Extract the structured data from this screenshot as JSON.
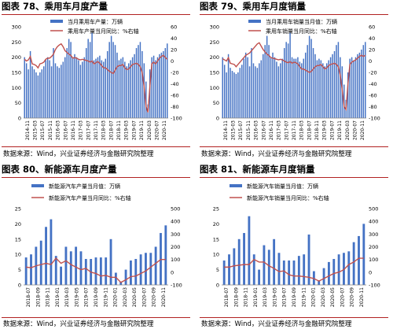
{
  "panels": [
    {
      "title": "图表 78、乘用车月度产量",
      "source": "数据来源：Wind，兴业证券经济与金融研究院整理",
      "chart_data": {
        "type": "bar",
        "legend": [
          "当月乘用车产量：万辆",
          "乘用车产量当月同比：%右轴"
        ],
        "x_tick_labels": [
          "2014-11",
          "2015-03",
          "2015-07",
          "2015-11",
          "2016-03",
          "2016-07",
          "2016-11",
          "2017-03",
          "2017-07",
          "2017-11",
          "2018-03",
          "2018-07",
          "2018-11",
          "2019-03",
          "2019-07",
          "2019-11",
          "2020-03",
          "2020-07",
          "2020-11"
        ],
        "ylim": [
          0,
          300
        ],
        "y_ticks": [
          0,
          50,
          100,
          150,
          200,
          250,
          300
        ],
        "y2lim": [
          -100,
          60
        ],
        "y2_ticks": [
          -100,
          -80,
          -60,
          -40,
          -20,
          0,
          20,
          40,
          60
        ],
        "series": [
          {
            "axis": "left",
            "type": "bar",
            "values": [
              200,
              180,
              160,
              220,
              170,
              160,
              150,
              140,
              150,
              160,
              170,
              190,
              200,
              190,
              170,
              230,
              180,
              170,
              165,
              175,
              185,
              200,
              230,
              260,
              250,
              200,
              210,
              200,
              190,
              175,
              185,
              200,
              230,
              260,
              250,
              280,
              190,
              195,
              200,
              205,
              190,
              185,
              195,
              220,
              250,
              270,
              250,
              240,
              215,
              190,
              195,
              200,
              185,
              170,
              180,
              190,
              200,
              210,
              230,
              240,
              250,
              220,
              180,
              120,
              45,
              160,
              200,
              205,
              190,
              200,
              210,
              215,
              220,
              230,
              245
            ]
          },
          {
            "axis": "right",
            "type": "line",
            "values": [
              3,
              0,
              2,
              8,
              -5,
              -6,
              -8,
              -12,
              -5,
              -4,
              -2,
              3,
              5,
              5,
              8,
              12,
              20,
              25,
              28,
              30,
              25,
              18,
              15,
              12,
              10,
              5,
              6,
              5,
              3,
              2,
              3,
              2,
              1,
              0,
              -2,
              0,
              -5,
              -3,
              -1,
              -4,
              -8,
              -12,
              -12,
              -15,
              -18,
              -20,
              -22,
              -16,
              -10,
              -8,
              -8,
              -6,
              -12,
              -15,
              -14,
              -10,
              -6,
              -5,
              -4,
              -6,
              -10,
              -20,
              -45,
              -80,
              -90,
              -45,
              -5,
              -2,
              -5,
              0,
              5,
              8,
              10,
              6,
              3
            ]
          }
        ]
      }
    },
    {
      "title": "图表 79、乘用车月度销量",
      "source": "数据来源：Wind，兴业证券经济与金融研究院整理",
      "chart_data": {
        "type": "bar",
        "legend": [
          "当月乘用车销量当月值：万辆",
          "乘用车销量当月同比：%右轴"
        ],
        "x_tick_labels": [
          "2014-11",
          "2015-03",
          "2015-07",
          "2015-11",
          "2016-03",
          "2016-07",
          "2016-11",
          "2017-03",
          "2017-07",
          "2017-11",
          "2018-03",
          "2018-07",
          "2018-11",
          "2019-03",
          "2019-07",
          "2019-11",
          "2020-03",
          "2020-07",
          "2020-11"
        ],
        "ylim": [
          0,
          300
        ],
        "y_ticks": [
          0,
          50,
          100,
          150,
          200,
          250,
          300
        ],
        "y2lim": [
          -100,
          60
        ],
        "y2_ticks": [
          -100,
          -80,
          -60,
          -40,
          -20,
          0,
          20,
          40,
          60
        ],
        "series": [
          {
            "axis": "left",
            "type": "bar",
            "values": [
              200,
              175,
              150,
              210,
              165,
              155,
              150,
              145,
              150,
              165,
              175,
              195,
              215,
              200,
              170,
              230,
              180,
              170,
              165,
              180,
              190,
              210,
              240,
              270,
              240,
              200,
              215,
              200,
              185,
              170,
              180,
              195,
              230,
              250,
              245,
              280,
              200,
              195,
              195,
              200,
              185,
              180,
              195,
              215,
              240,
              270,
              260,
              230,
              210,
              190,
              195,
              190,
              180,
              170,
              180,
              190,
              200,
              210,
              220,
              240,
              250,
              200,
              170,
              110,
              60,
              150,
              195,
              200,
              190,
              200,
              210,
              215,
              225,
              240,
              250
            ]
          },
          {
            "axis": "right",
            "type": "line",
            "values": [
              4,
              2,
              0,
              6,
              -4,
              -5,
              -6,
              -10,
              -6,
              -2,
              2,
              6,
              10,
              12,
              14,
              18,
              22,
              26,
              30,
              32,
              26,
              20,
              16,
              12,
              10,
              6,
              5,
              4,
              3,
              2,
              3,
              2,
              0,
              -2,
              -3,
              -1,
              -4,
              -2,
              -3,
              -5,
              -10,
              -14,
              -14,
              -16,
              -18,
              -20,
              -18,
              -14,
              -10,
              -8,
              -8,
              -6,
              -10,
              -14,
              -12,
              -8,
              -6,
              -5,
              -4,
              -6,
              -10,
              -25,
              -50,
              -80,
              -85,
              -40,
              -6,
              -2,
              0,
              2,
              5,
              8,
              10,
              8,
              10
            ]
          }
        ]
      }
    },
    {
      "title": "图表 80、新能源车月度产量",
      "source": "数据来源：Wind，兴业证券经济与金融研究院整理",
      "chart_data": {
        "type": "bar",
        "legend": [
          "新能源汽车产量当月值：万辆",
          "新能源汽车产量当月同比：%右轴"
        ],
        "x_tick_labels": [
          "2018-07",
          "2018-09",
          "2018-11",
          "2019-01",
          "2019-03",
          "2019-05",
          "2019-07",
          "2019-09",
          "2019-11",
          "2020-01",
          "2020-03",
          "2020-05",
          "2020-07",
          "2020-09",
          "2020-11"
        ],
        "ylim": [
          0,
          25
        ],
        "y_ticks": [
          0,
          5,
          10,
          15,
          20,
          25
        ],
        "y2lim": [
          -100,
          500
        ],
        "y2_ticks": [
          -100,
          0,
          100,
          200,
          300,
          400,
          500
        ],
        "series": [
          {
            "axis": "left",
            "type": "bar",
            "values": [
              9,
              10,
              12.5,
              14.5,
              19,
              21.5,
              9.5,
              6,
              12.5,
              11,
              12.5,
              11,
              8.5,
              8.5,
              9,
              9,
              9,
              15,
              4,
              1,
              5,
              8,
              8.5,
              10,
              10.5,
              10.5,
              12.5,
              17,
              19.5
            ]
          },
          {
            "axis": "right",
            "type": "line",
            "values": [
              40,
              35,
              50,
              60,
              70,
              60,
              110,
              70,
              90,
              60,
              40,
              20,
              30,
              0,
              -10,
              -30,
              -25,
              -40,
              -40,
              -80,
              -60,
              -35,
              -30,
              -10,
              10,
              40,
              70,
              100,
              100
            ]
          }
        ]
      }
    },
    {
      "title": "图表 81、新能源车月度销量",
      "source": "数据来源：Wind，兴业证券经济与金融研究院整理",
      "chart_data": {
        "type": "bar",
        "legend": [
          "新能源汽车销量当月值：万辆",
          "新能源汽车销量当月同比：%右轴"
        ],
        "x_tick_labels": [
          "2018-07",
          "2018-09",
          "2018-11",
          "2019-01",
          "2019-03",
          "2019-05",
          "2019-07",
          "2019-09",
          "2019-11",
          "2020-01",
          "2020-03",
          "2020-05",
          "2020-07",
          "2020-09",
          "2020-11"
        ],
        "ylim": [
          0,
          25
        ],
        "y_ticks": [
          0,
          5,
          10,
          15,
          20,
          25
        ],
        "y2lim": [
          -100,
          500
        ],
        "y2_ticks": [
          -100,
          0,
          100,
          200,
          300,
          400,
          500
        ],
        "series": [
          {
            "axis": "left",
            "type": "bar",
            "values": [
              8,
              10,
              12,
              15,
              17,
              22.5,
              10,
              5,
              13,
              11.5,
              15,
              10.5,
              8,
              8,
              8,
              9.5,
              10,
              16.5,
              4.5,
              1.5,
              5.5,
              7.5,
              8.5,
              10,
              10.5,
              11,
              14,
              16,
              20
            ]
          },
          {
            "axis": "right",
            "type": "line",
            "values": [
              40,
              40,
              50,
              55,
              60,
              60,
              100,
              80,
              80,
              50,
              30,
              5,
              10,
              -20,
              -30,
              -30,
              -35,
              -40,
              -50,
              -70,
              -50,
              -30,
              -10,
              0,
              20,
              60,
              80,
              110,
              110
            ]
          }
        ]
      }
    }
  ]
}
